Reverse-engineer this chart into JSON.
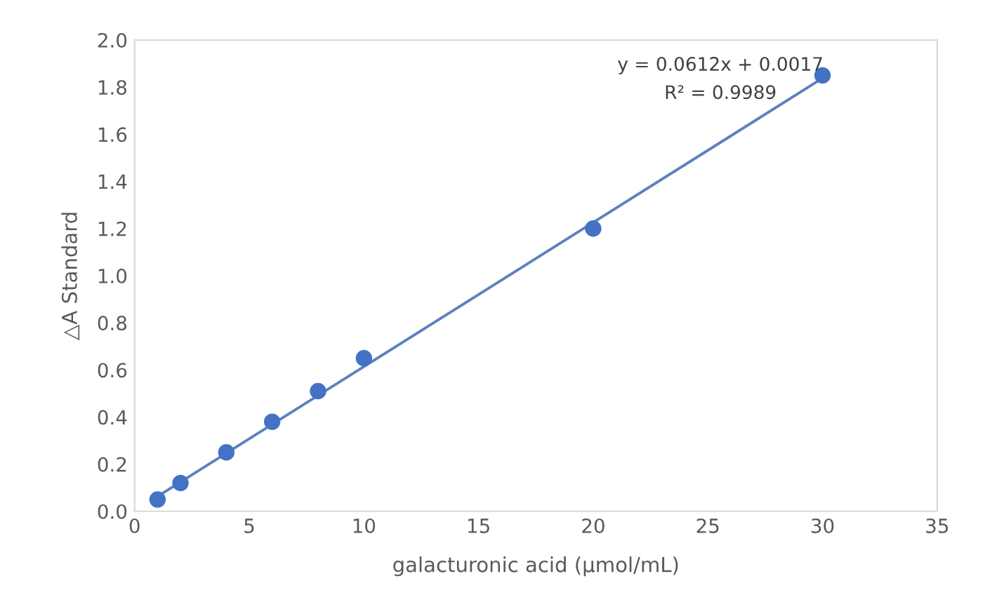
{
  "chart_data": {
    "type": "scatter",
    "xlabel": "galacturonic acid (μmol/mL)",
    "ylabel": "△A Standard",
    "series": [
      {
        "color": "#4472c4",
        "x": [
          1,
          2,
          4,
          6,
          8,
          10,
          20,
          30
        ],
        "values": [
          0.05,
          0.12,
          0.25,
          0.38,
          0.51,
          0.65,
          1.2,
          1.85
        ],
        "marker": "circle"
      },
      {
        "type": "line",
        "color": "#5b82c0",
        "x": [
          1,
          30
        ],
        "values": [
          0.063,
          1.838
        ],
        "marker": "none",
        "line_style": "solid"
      }
    ],
    "annotations": [
      "y = 0.0612x + 0.0017",
      "R² = 0.9989"
    ],
    "xlim": [
      0,
      35
    ],
    "xticks": [
      0,
      5,
      10,
      15,
      20,
      25,
      30,
      35
    ],
    "ylim": [
      0,
      2.0
    ],
    "yticks": [
      {
        "value": 0,
        "label": "0.0"
      },
      {
        "value": 0.2,
        "label": "0.2"
      },
      {
        "value": 0.4,
        "label": "0.4"
      },
      {
        "value": 0.6,
        "label": "0.6"
      },
      {
        "value": 0.8,
        "label": "0.8"
      },
      {
        "value": 1.0,
        "label": "1.0"
      },
      {
        "value": 1.2,
        "label": "1.2"
      },
      {
        "value": 1.4,
        "label": "1.4"
      },
      {
        "value": 1.6,
        "label": "1.6"
      },
      {
        "value": 1.8,
        "label": "1.8"
      },
      {
        "value": 2.0,
        "label": "2.0"
      }
    ],
    "grid": false,
    "legend": false
  }
}
